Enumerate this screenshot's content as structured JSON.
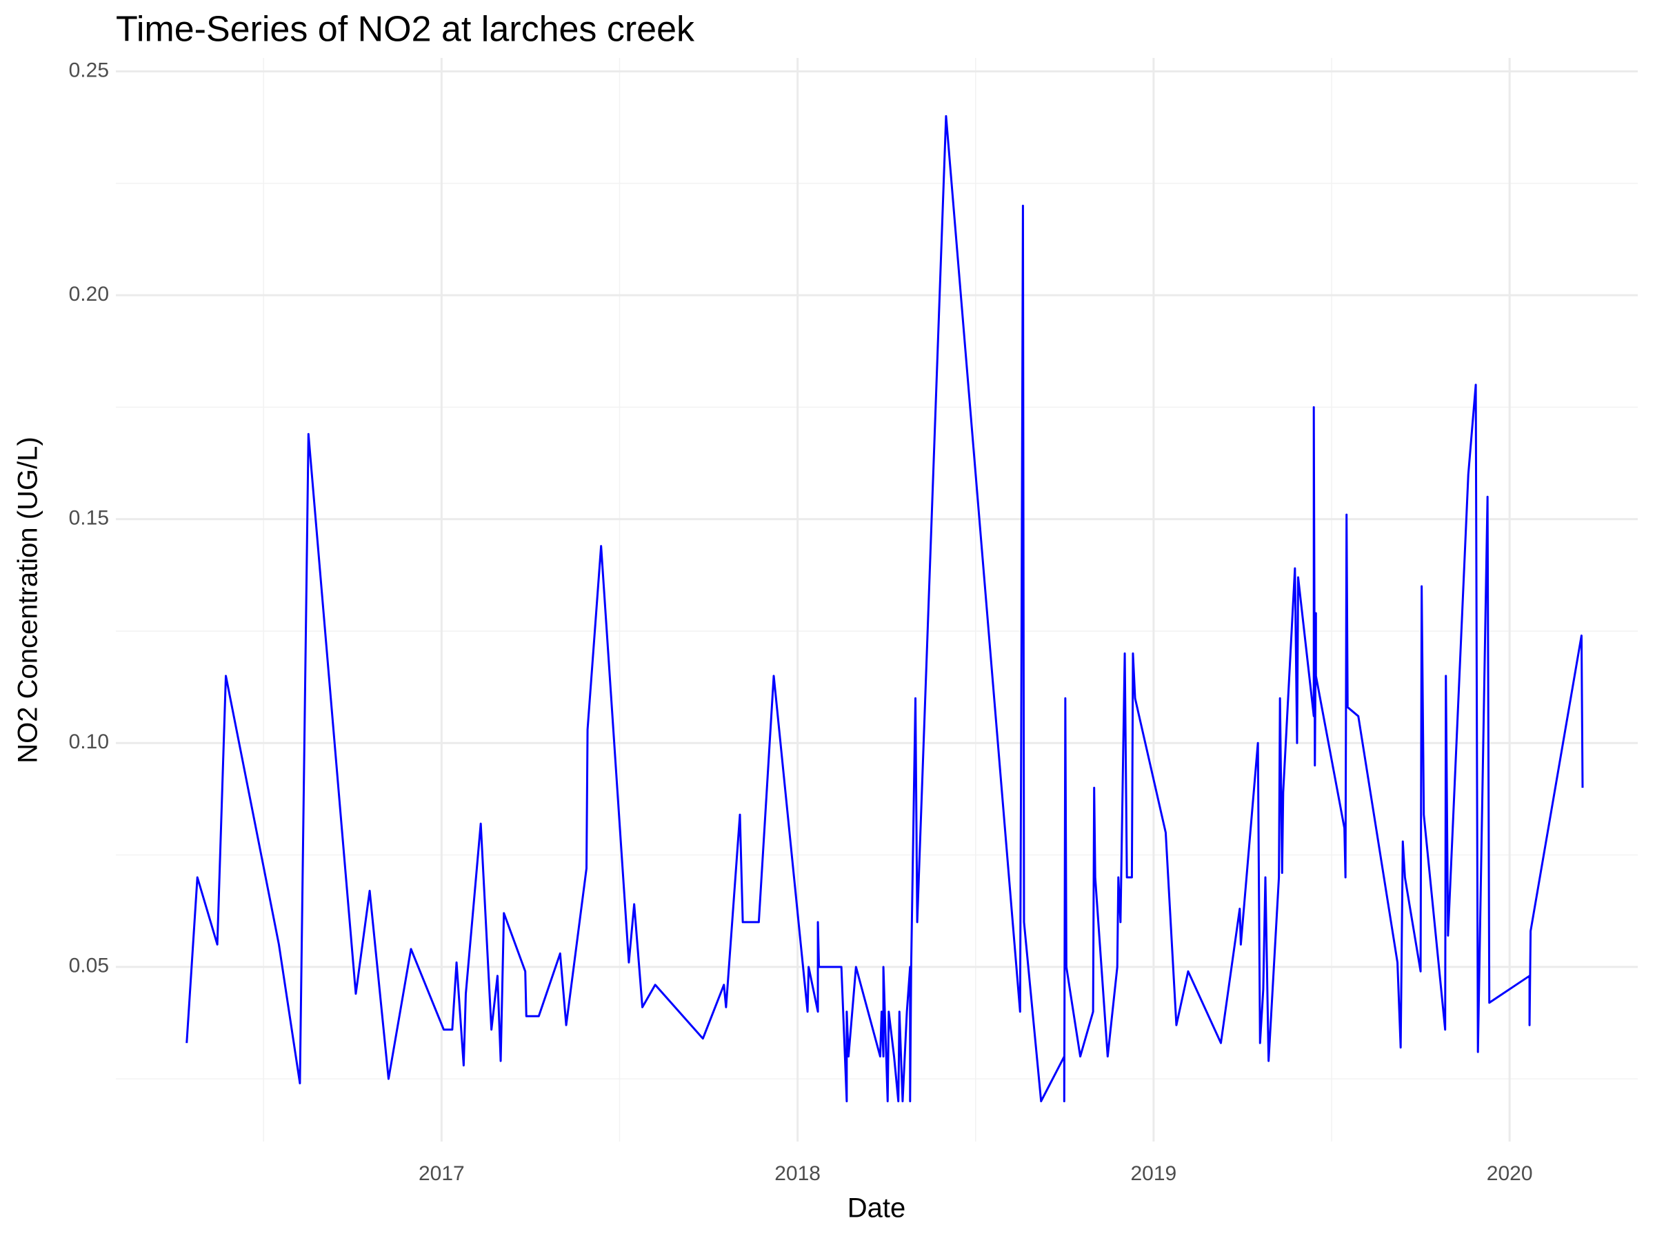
{
  "chart_data": {
    "type": "line",
    "title": "Time-Series of NO2 at larches creek",
    "x_label": "Date",
    "y_label": "NO2 Concentration (UG/L)",
    "color": "#0000ff",
    "grid": true,
    "xlim": [
      2016.085,
      2020.36
    ],
    "xticks": [
      2017,
      2018,
      2019,
      2020
    ],
    "ylim": [
      0.011,
      0.253
    ],
    "yticks": [
      {
        "value": 0.05,
        "label": "0.05"
      },
      {
        "value": 0.1,
        "label": "0.10"
      },
      {
        "value": 0.15,
        "label": "0.15"
      },
      {
        "value": 0.2,
        "label": "0.20"
      },
      {
        "value": 0.25,
        "label": "0.25"
      }
    ],
    "x": [
      2016.284,
      2016.314,
      2016.37,
      2016.394,
      2016.543,
      2016.602,
      2016.626,
      2016.759,
      2016.798,
      2016.851,
      2016.914,
      2017.006,
      2017.03,
      2017.042,
      2017.062,
      2017.068,
      2017.11,
      2017.14,
      2017.157,
      2017.166,
      2017.175,
      2017.235,
      2017.238,
      2017.273,
      2017.333,
      2017.35,
      2017.407,
      2017.41,
      2017.448,
      2017.526,
      2017.541,
      2017.564,
      2017.6,
      2017.734,
      2017.793,
      2017.799,
      2017.838,
      2017.846,
      2017.891,
      2017.933,
      2018.028,
      2018.031,
      2018.057,
      2018.057,
      2018.06,
      2018.123,
      2018.138,
      2018.138,
      2018.143,
      2018.164,
      2018.232,
      2018.236,
      2018.241,
      2018.241,
      2018.253,
      2018.256,
      2018.271,
      2018.283,
      2018.286,
      2018.295,
      2018.307,
      2018.316,
      2018.316,
      2018.319,
      2018.331,
      2018.336,
      2018.417,
      2018.625,
      2018.628,
      2018.633,
      2018.636,
      2018.684,
      2018.749,
      2018.749,
      2018.752,
      2018.755,
      2018.794,
      2018.83,
      2018.833,
      2018.836,
      2018.871,
      2018.898,
      2018.901,
      2018.907,
      2018.919,
      2018.925,
      2018.939,
      2018.942,
      2018.948,
      2019.034,
      2019.064,
      2019.097,
      2019.189,
      2019.242,
      2019.245,
      2019.293,
      2019.299,
      2019.308,
      2019.314,
      2019.323,
      2019.352,
      2019.355,
      2019.361,
      2019.364,
      2019.397,
      2019.403,
      2019.406,
      2019.45,
      2019.45,
      2019.453,
      2019.456,
      2019.456,
      2019.536,
      2019.539,
      2019.542,
      2019.545,
      2019.575,
      2019.685,
      2019.694,
      2019.7,
      2019.706,
      2019.75,
      2019.753,
      2019.759,
      2019.819,
      2019.821,
      2019.827,
      2019.884,
      2019.905,
      2019.911,
      2019.938,
      2019.943,
      2020.056,
      2020.056,
      2020.059,
      2020.202,
      2020.205
    ],
    "values": [
      0.033,
      0.07,
      0.055,
      0.115,
      0.055,
      0.024,
      0.169,
      0.044,
      0.067,
      0.025,
      0.054,
      0.036,
      0.036,
      0.051,
      0.028,
      0.044,
      0.082,
      0.036,
      0.048,
      0.029,
      0.062,
      0.049,
      0.039,
      0.039,
      0.053,
      0.037,
      0.072,
      0.103,
      0.144,
      0.051,
      0.064,
      0.041,
      0.046,
      0.034,
      0.046,
      0.041,
      0.084,
      0.06,
      0.06,
      0.115,
      0.04,
      0.05,
      0.04,
      0.06,
      0.05,
      0.05,
      0.02,
      0.04,
      0.03,
      0.05,
      0.03,
      0.04,
      0.03,
      0.05,
      0.02,
      0.04,
      0.03,
      0.02,
      0.04,
      0.02,
      0.04,
      0.05,
      0.02,
      0.05,
      0.11,
      0.06,
      0.24,
      0.04,
      0.1,
      0.22,
      0.06,
      0.02,
      0.03,
      0.02,
      0.11,
      0.05,
      0.03,
      0.04,
      0.09,
      0.07,
      0.03,
      0.05,
      0.07,
      0.06,
      0.12,
      0.07,
      0.07,
      0.12,
      0.11,
      0.08,
      0.037,
      0.049,
      0.033,
      0.063,
      0.055,
      0.1,
      0.033,
      0.045,
      0.07,
      0.029,
      0.07,
      0.11,
      0.071,
      0.089,
      0.139,
      0.1,
      0.137,
      0.106,
      0.175,
      0.095,
      0.129,
      0.115,
      0.081,
      0.07,
      0.151,
      0.108,
      0.106,
      0.051,
      0.032,
      0.078,
      0.07,
      0.049,
      0.135,
      0.084,
      0.036,
      0.115,
      0.057,
      0.16,
      0.18,
      0.031,
      0.155,
      0.042,
      0.048,
      0.037,
      0.058,
      0.124,
      0.09
    ]
  }
}
